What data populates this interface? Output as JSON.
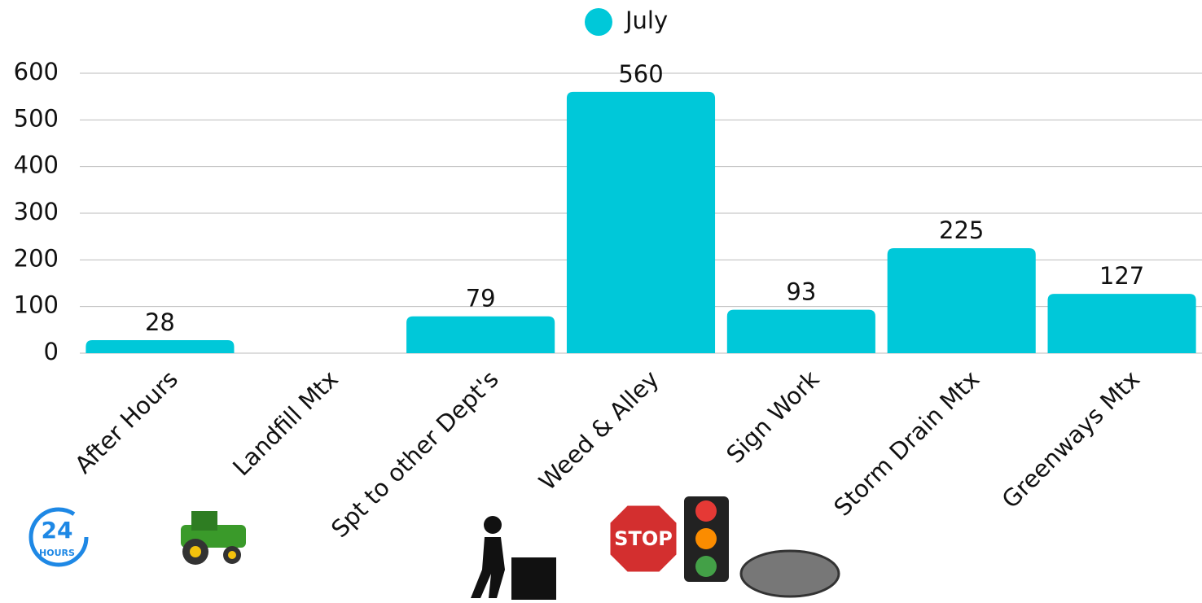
{
  "chart_data": {
    "type": "bar",
    "series": [
      {
        "name": "July",
        "color": "#00c8d9",
        "values": [
          28,
          null,
          79,
          560,
          93,
          225,
          127
        ]
      }
    ],
    "categories": [
      "After Hours",
      "Landfill Mtx",
      "Spt to other Dept's",
      "Weed & Alley",
      "Sign Work",
      "Storm Drain Mtx",
      "Greenways Mtx"
    ],
    "ylim": [
      0,
      600
    ],
    "yticks": [
      0,
      100,
      200,
      300,
      400,
      500,
      600
    ],
    "grid": true,
    "legend": "top",
    "icon_labels": [
      "24",
      "HOURS",
      "STOP"
    ]
  }
}
